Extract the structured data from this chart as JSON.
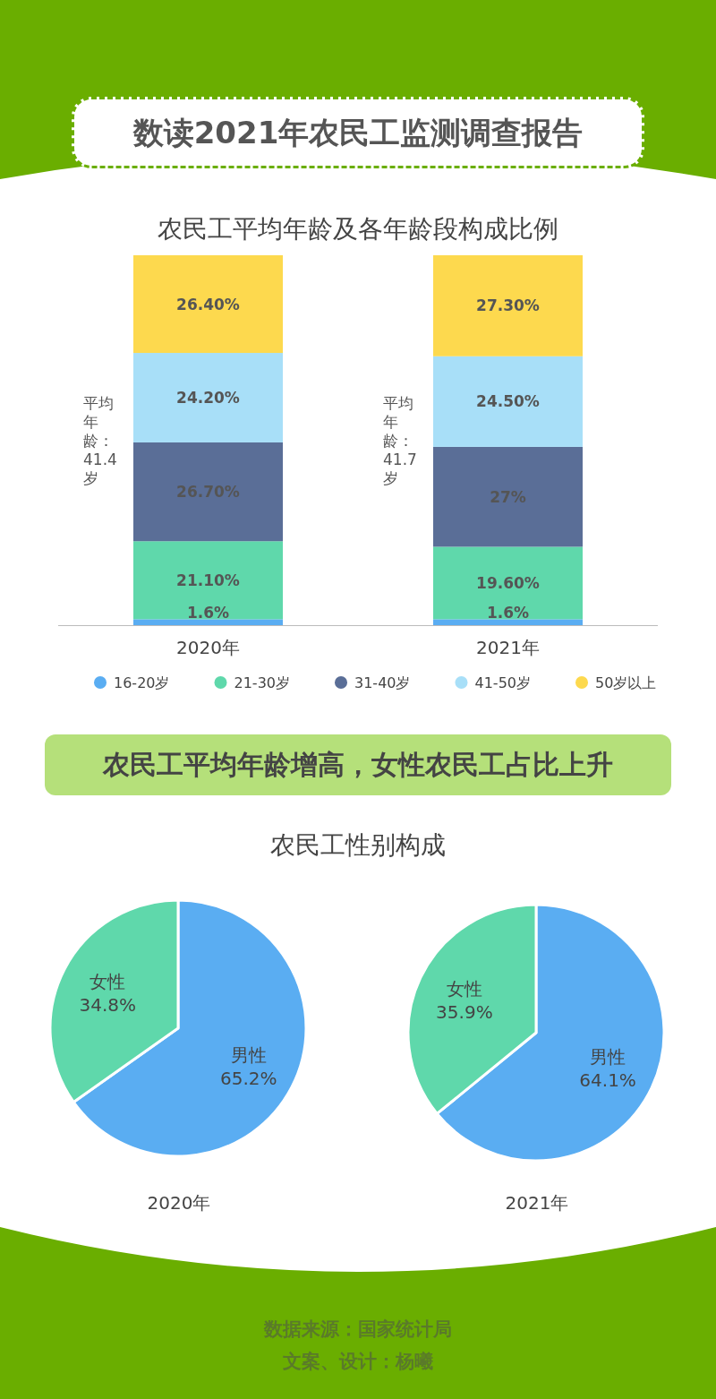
{
  "chart_data": [
    {
      "type": "other",
      "title": "数读2021年农民工监测调查报告"
    },
    {
      "type": "bar",
      "stacked": true,
      "title": "农民工平均年龄及各年龄段构成比例",
      "categories": [
        "2020年",
        "2021年"
      ],
      "legend": "bottom",
      "series": [
        {
          "name": "16-20岁",
          "color": "#5aadf2",
          "values": [
            1.6,
            1.6
          ],
          "value_labels": [
            "1.6%",
            "1.6%"
          ]
        },
        {
          "name": "21-30岁",
          "color": "#5fd8ab",
          "values": [
            21.1,
            19.6
          ],
          "value_labels": [
            "21.10%",
            "19.60%"
          ]
        },
        {
          "name": "31-40岁",
          "color": "#5a6e97",
          "values": [
            26.7,
            27
          ],
          "value_labels": [
            "26.70%",
            "27%"
          ]
        },
        {
          "name": "41-50岁",
          "color": "#a8dff8",
          "values": [
            24.2,
            24.5
          ],
          "value_labels": [
            "24.20%",
            "24.50%"
          ]
        },
        {
          "name": "50岁以上",
          "color": "#fdd94e",
          "values": [
            26.4,
            27.3
          ],
          "value_labels": [
            "26.40%",
            "27.30%"
          ]
        }
      ],
      "annotations": [
        "平均年龄：41.4岁",
        "平均年龄：41.7岁"
      ]
    },
    {
      "type": "other",
      "title": "农民工平均年龄增高，女性农民工占比上升"
    },
    {
      "type": "pie",
      "title": "农民工性别构成",
      "xlabel": "2020年",
      "categories": [
        "男性",
        "女性"
      ],
      "values": [
        65.2,
        34.8
      ],
      "value_labels": [
        "65.2%",
        "34.8%"
      ],
      "colors": [
        "#5aadf2",
        "#5fd8ab"
      ]
    },
    {
      "type": "pie",
      "xlabel": "2021年",
      "categories": [
        "男性",
        "女性"
      ],
      "values": [
        64.1,
        35.9
      ],
      "value_labels": [
        "64.1%",
        "35.9%"
      ],
      "colors": [
        "#5aadf2",
        "#5fd8ab"
      ]
    },
    {
      "type": "other",
      "annotations": [
        "数据来源：国家统计局",
        "文案、设计：杨曦"
      ]
    }
  ]
}
